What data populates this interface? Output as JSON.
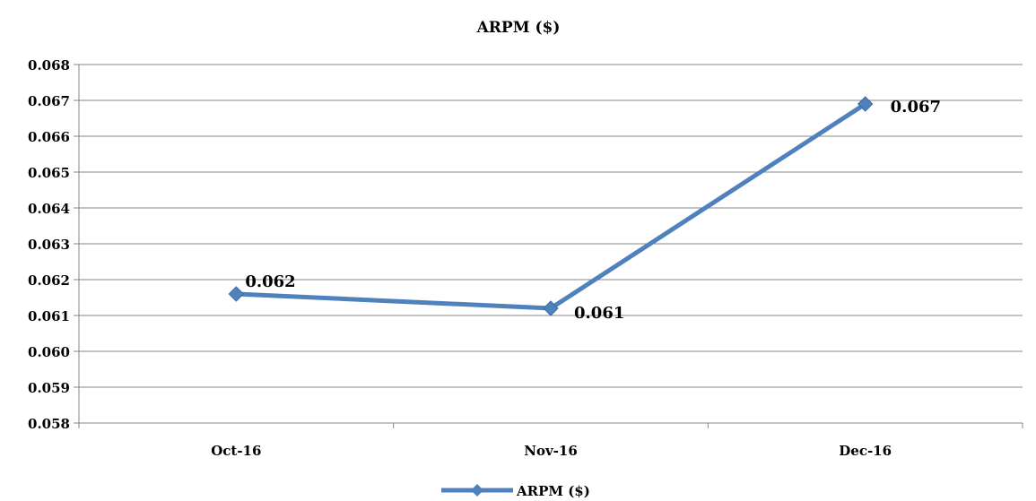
{
  "chart_data": {
    "type": "line",
    "title": "ARPM ($)",
    "xlabel": "",
    "ylabel": "",
    "categories": [
      "Oct-16",
      "Nov-16",
      "Dec-16"
    ],
    "series": [
      {
        "name": "ARPM ($)",
        "values": [
          0.0616,
          0.0612,
          0.0669
        ],
        "data_labels": [
          "0.062",
          "0.061",
          "0.067"
        ],
        "color": "#4F81BD",
        "marker": "diamond"
      }
    ],
    "ylim": [
      0.058,
      0.068
    ],
    "y_ticks": [
      "0.058",
      "0.059",
      "0.060",
      "0.061",
      "0.062",
      "0.063",
      "0.064",
      "0.065",
      "0.066",
      "0.067",
      "0.068"
    ],
    "grid": true,
    "legend": "bottom",
    "gridline_color": "#878787",
    "axis_color": "#878787"
  }
}
